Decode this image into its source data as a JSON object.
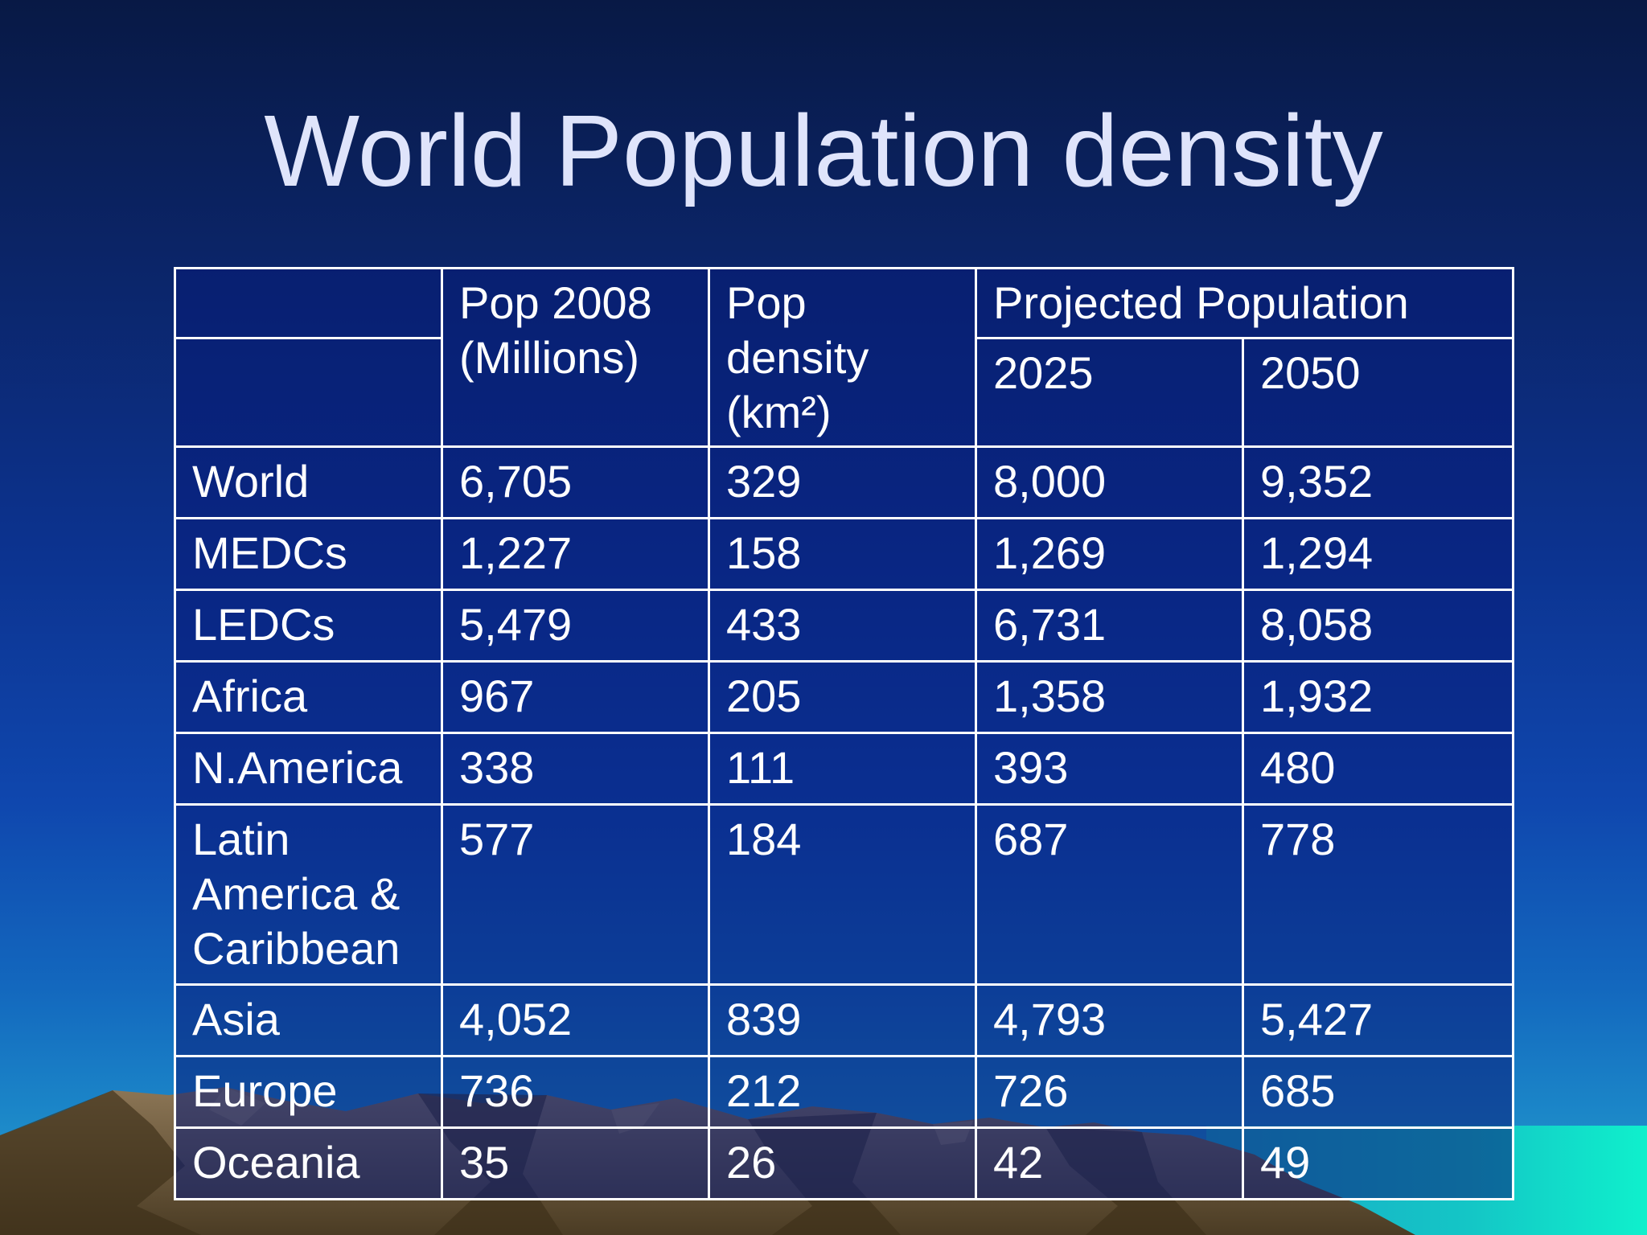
{
  "slide": {
    "title": "World Population density"
  },
  "table": {
    "headers": {
      "pop2008": "Pop 2008 (Millions)",
      "density": "Pop density (km²)",
      "projected": "Projected Population",
      "y2025": "2025",
      "y2050": "2050"
    },
    "rows": [
      {
        "region": "World",
        "pop2008": "6,705",
        "density": "329",
        "p2025": "8,000",
        "p2050": "9,352"
      },
      {
        "region": "MEDCs",
        "pop2008": "1,227",
        "density": "158",
        "p2025": "1,269",
        "p2050": "1,294"
      },
      {
        "region": "LEDCs",
        "pop2008": "5,479",
        "density": "433",
        "p2025": "6,731",
        "p2050": "8,058"
      },
      {
        "region": "Africa",
        "pop2008": "967",
        "density": "205",
        "p2025": "1,358",
        "p2050": "1,932"
      },
      {
        "region": "N.America",
        "pop2008": "338",
        "density": "111",
        "p2025": "393",
        "p2050": "480"
      },
      {
        "region": "Latin America & Caribbean",
        "pop2008": "577",
        "density": "184",
        "p2025": "687",
        "p2050": "778"
      },
      {
        "region": "Asia",
        "pop2008": "4,052",
        "density": "839",
        "p2025": "4,793",
        "p2050": "5,427"
      },
      {
        "region": "Europe",
        "pop2008": "736",
        "density": "212",
        "p2025": "726",
        "p2050": "685"
      },
      {
        "region": "Oceania",
        "pop2008": "35",
        "density": "26",
        "p2025": "42",
        "p2050": "49"
      }
    ]
  },
  "colors": {
    "sky_top": "#081945",
    "sky_bottom": "#2aa3cf",
    "sea": "#10e0c8",
    "mountain_dark": "#4a3a22",
    "mountain_light": "#8a7452",
    "text": "#ffffff",
    "title_text": "#dfe4fb"
  }
}
